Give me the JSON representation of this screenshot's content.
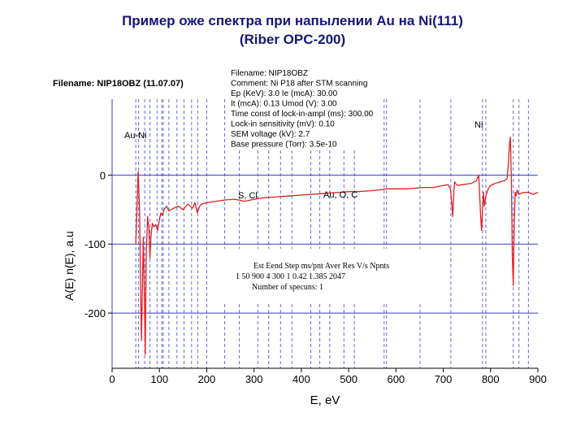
{
  "title_line1": "Пример оже спектра при напылении Au на Ni(111)",
  "title_line2": "(Riber OPC-200)",
  "file_label": "Filename: NIP18OBZ (11.07.07)",
  "info_lines": [
    "Filename: NIP18OBZ",
    "Comment: Ni P18 after STM scanning",
    "Ep (KeV):    3.0  Ie (mcA):  30.00",
    "It (mcA):    0.13  Umod (V):   3.00",
    "Time const of lock-in-ampl (ms):  300.00",
    "Lock-in sensitivity (mV):     0.10",
    "SEM voltage (kV):     2.7",
    "Base pressure (Torr): 3.5e-10"
  ],
  "param_header": "Est   Eend  Step  ms/pnt  Aver  Res    V/s    Npnts",
  "param_values": "1     50   900    4        300     1   0.42  1.385   2047",
  "param_footer": "Number of specuns:  1",
  "annotations": {
    "au_ni": "Au-Ni",
    "ni": "Ni",
    "s_cl": "S, Cl",
    "au_o_c": "Au, O, C"
  },
  "colors": {
    "title": "#16167a",
    "curve": "#e02020",
    "grid_v": "#6a6ad8",
    "zero_line": "#3c3ccc"
  },
  "chart_data": {
    "type": "line",
    "title": "Пример оже спектра при напылении Au на Ni(111) (Riber OPC-200)",
    "xlabel": "E, eV",
    "ylabel": "A(E) n(E), a.u",
    "xlim": [
      0,
      900
    ],
    "ylim": [
      -280,
      110
    ],
    "x_ticks": [
      0,
      100,
      200,
      300,
      400,
      500,
      600,
      700,
      800,
      900
    ],
    "y_ticks": [
      0,
      -100,
      -200
    ],
    "grid": true,
    "reference_lines_x": [
      50,
      56,
      69,
      80,
      95,
      105,
      108,
      120,
      137,
      152,
      168,
      181,
      200,
      238,
      269,
      308,
      331,
      356,
      380,
      420,
      439,
      460,
      490,
      512,
      575,
      580,
      651,
      716,
      783,
      790,
      848,
      860,
      880
    ],
    "series": [
      {
        "x": [
          50,
          52,
          55,
          58,
          60,
          62,
          64,
          66,
          68,
          70,
          72,
          75,
          78,
          80,
          82,
          85,
          88,
          92,
          96,
          100,
          103,
          106,
          110,
          115,
          120,
          130,
          140,
          150,
          160,
          170,
          175,
          180,
          185,
          190,
          200,
          220,
          240,
          260,
          280,
          300,
          320,
          340,
          360,
          380,
          400,
          420,
          440,
          460,
          480,
          500,
          520,
          540,
          560,
          580,
          600,
          620,
          640,
          660,
          680,
          700,
          710,
          715,
          718,
          720,
          722,
          724,
          726,
          730,
          740,
          760,
          770,
          775,
          777,
          779,
          781,
          783,
          785,
          787,
          790,
          795,
          800,
          810,
          820,
          830,
          835,
          838,
          840,
          842,
          844,
          846,
          848,
          850,
          852,
          854,
          856,
          858,
          860,
          870,
          880,
          890,
          900
        ],
        "y": [
          -100,
          -60,
          5,
          -50,
          -150,
          -240,
          -160,
          -90,
          -170,
          -260,
          -120,
          -60,
          -80,
          -120,
          -90,
          -70,
          -75,
          -72,
          -80,
          -65,
          -55,
          -58,
          -50,
          -45,
          -52,
          -48,
          -45,
          -50,
          -42,
          -48,
          -40,
          -55,
          -45,
          -42,
          -40,
          -38,
          -36,
          -35,
          -38,
          -35,
          -33,
          -32,
          -31,
          -30,
          -29,
          -28,
          -27,
          -26,
          -25,
          -24,
          -24,
          -23,
          -22,
          -20,
          -20,
          -20,
          -19,
          -18,
          -18,
          -15,
          -14,
          -20,
          -40,
          -60,
          -30,
          -10,
          -12,
          -15,
          -14,
          -12,
          -8,
          0,
          -30,
          -60,
          -80,
          -50,
          -25,
          -45,
          -30,
          -20,
          -15,
          -12,
          -10,
          -8,
          -5,
          20,
          45,
          55,
          -10,
          -120,
          -160,
          -70,
          -25,
          -30,
          -22,
          -25,
          -28,
          -25,
          -25,
          -28,
          -25
        ]
      }
    ]
  }
}
